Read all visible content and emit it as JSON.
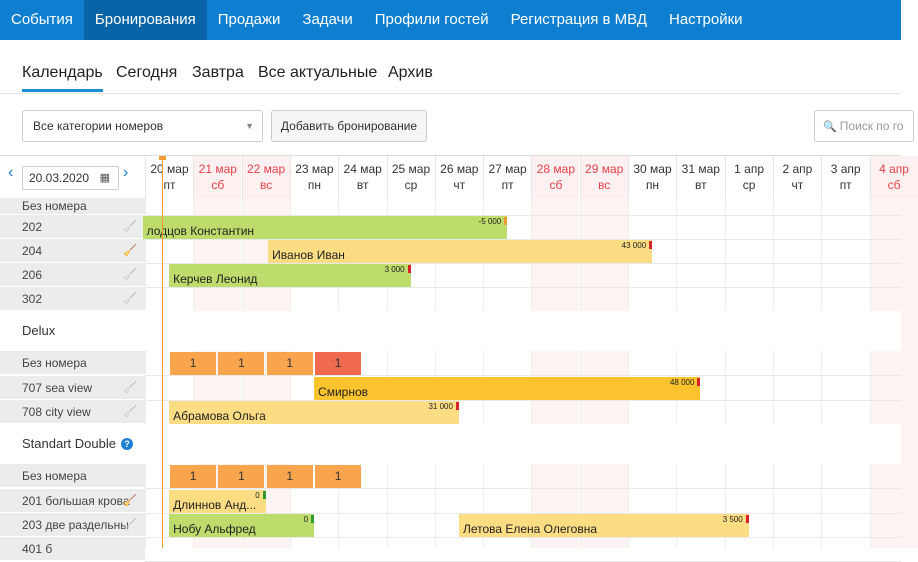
{
  "nav": {
    "items": [
      {
        "label": "События",
        "active": false
      },
      {
        "label": "Бронирования",
        "active": true
      },
      {
        "label": "Продажи",
        "active": false
      },
      {
        "label": "Задачи",
        "active": false
      },
      {
        "label": "Профили гостей",
        "active": false
      },
      {
        "label": "Регистрация в МВД",
        "active": false
      },
      {
        "label": "Настройки",
        "active": false
      }
    ]
  },
  "tabs": {
    "items": [
      {
        "label": "Календарь",
        "active": true
      },
      {
        "label": "Сегодня",
        "active": false
      },
      {
        "label": "Завтра",
        "active": false
      },
      {
        "label": "Все актуальные",
        "active": false
      },
      {
        "label": "Архив",
        "active": false
      }
    ]
  },
  "toolbar": {
    "category_select": "Все категории номеров",
    "add_booking": "Добавить бронирование",
    "search_placeholder": "Поиск по го"
  },
  "calendar": {
    "date_value": "20.03.2020",
    "days": [
      {
        "date": "20 мар",
        "dow": "пт",
        "weekend": false
      },
      {
        "date": "21 мар",
        "dow": "сб",
        "weekend": true
      },
      {
        "date": "22 мар",
        "dow": "вс",
        "weekend": true
      },
      {
        "date": "23 мар",
        "dow": "пн",
        "weekend": false
      },
      {
        "date": "24 мар",
        "dow": "вт",
        "weekend": false
      },
      {
        "date": "25 мар",
        "dow": "ср",
        "weekend": false
      },
      {
        "date": "26 мар",
        "dow": "чт",
        "weekend": false
      },
      {
        "date": "27 мар",
        "dow": "пт",
        "weekend": false
      },
      {
        "date": "28 мар",
        "dow": "сб",
        "weekend": true
      },
      {
        "date": "29 мар",
        "dow": "вс",
        "weekend": true
      },
      {
        "date": "30 мар",
        "dow": "пн",
        "weekend": false
      },
      {
        "date": "31 мар",
        "dow": "вт",
        "weekend": false
      },
      {
        "date": "1 апр",
        "dow": "ср",
        "weekend": false
      },
      {
        "date": "2 апр",
        "dow": "чт",
        "weekend": false
      },
      {
        "date": "3 апр",
        "dow": "пт",
        "weekend": false
      },
      {
        "date": "4 апр",
        "dow": "сб",
        "weekend": true
      }
    ],
    "rows": [
      {
        "type": "room",
        "label": "Без номера"
      },
      {
        "type": "room",
        "label": "202",
        "broom": "grey"
      },
      {
        "type": "room",
        "label": "204",
        "broom": "red"
      },
      {
        "type": "room",
        "label": "206",
        "broom": "grey"
      },
      {
        "type": "room",
        "label": "302",
        "broom": "grey"
      },
      {
        "type": "section",
        "label": "Delux"
      },
      {
        "type": "room",
        "label": "Без номера"
      },
      {
        "type": "room",
        "label": "707 sea view",
        "broom": "grey"
      },
      {
        "type": "room",
        "label": "708 city view",
        "broom": "grey"
      },
      {
        "type": "section",
        "label": "Standart Double",
        "help": true
      },
      {
        "type": "room",
        "label": "Без номера"
      },
      {
        "type": "room",
        "label": "201 большая крова",
        "broom": "red"
      },
      {
        "type": "room",
        "label": "203 две раздельны",
        "broom": "grey"
      },
      {
        "type": "room",
        "label": "401 б"
      }
    ],
    "bookings": [
      {
        "name": "лодцов Константин",
        "row": 1,
        "amount": "-5 000",
        "color": "green",
        "flag": "o"
      },
      {
        "name": "Иванов Иван",
        "row": 2,
        "amount": "43 000",
        "color": "lyellow",
        "flag": "r"
      },
      {
        "name": "Керчев Леонид",
        "row": 3,
        "amount": "3 000",
        "color": "green",
        "flag": "r"
      },
      {
        "name": "Смирнов",
        "row": 7,
        "amount": "48 000",
        "color": "yellow",
        "flag": "r"
      },
      {
        "name": "Абрамова Ольга",
        "row": 8,
        "amount": "31 000",
        "color": "lyellow",
        "flag": "r"
      },
      {
        "name": "Длиннов Анд...",
        "row": 11,
        "amount": "0",
        "color": "lyellow",
        "flag": "g"
      },
      {
        "name": "Нобу Альфред",
        "row": 12,
        "amount": "0",
        "color": "green",
        "flag": "g"
      },
      {
        "name": "Летова Елена Олеговна",
        "row": 12,
        "amount": "3 500",
        "color": "lyellow",
        "flag": "r"
      }
    ],
    "counts": [
      {
        "row": 6,
        "values": [
          "1",
          "1",
          "1",
          "1"
        ],
        "last_red": true
      },
      {
        "row": 10,
        "values": [
          "1",
          "1",
          "1",
          "1"
        ],
        "last_red": false
      }
    ]
  }
}
